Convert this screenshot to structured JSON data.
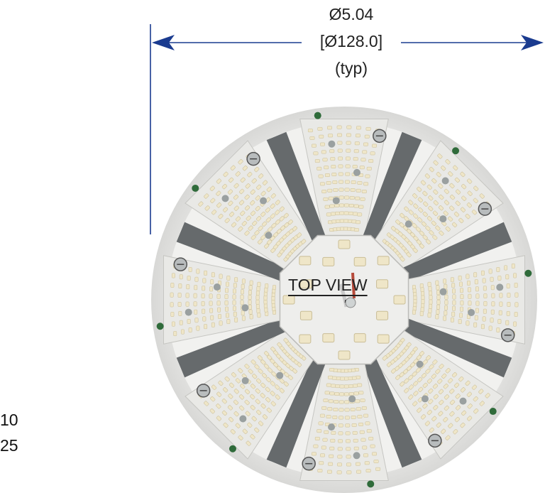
{
  "dimension": {
    "inch_value": "Ø5.04",
    "mm_value": "[Ø128.0]",
    "qualifier": "(typ)"
  },
  "view_label": "TOP VIEW",
  "side_notes": [
    "10",
    "25"
  ],
  "colors": {
    "dimension_line": "#1a3b8f",
    "board": "#f2f2f0",
    "module": "#e9e9e6",
    "gap": "#666a6c",
    "led": "#efe6c8",
    "component": "#9aa0a0"
  },
  "fixture": {
    "module_count": 8,
    "center_led_count": 16,
    "led_strip_columns": 8
  }
}
